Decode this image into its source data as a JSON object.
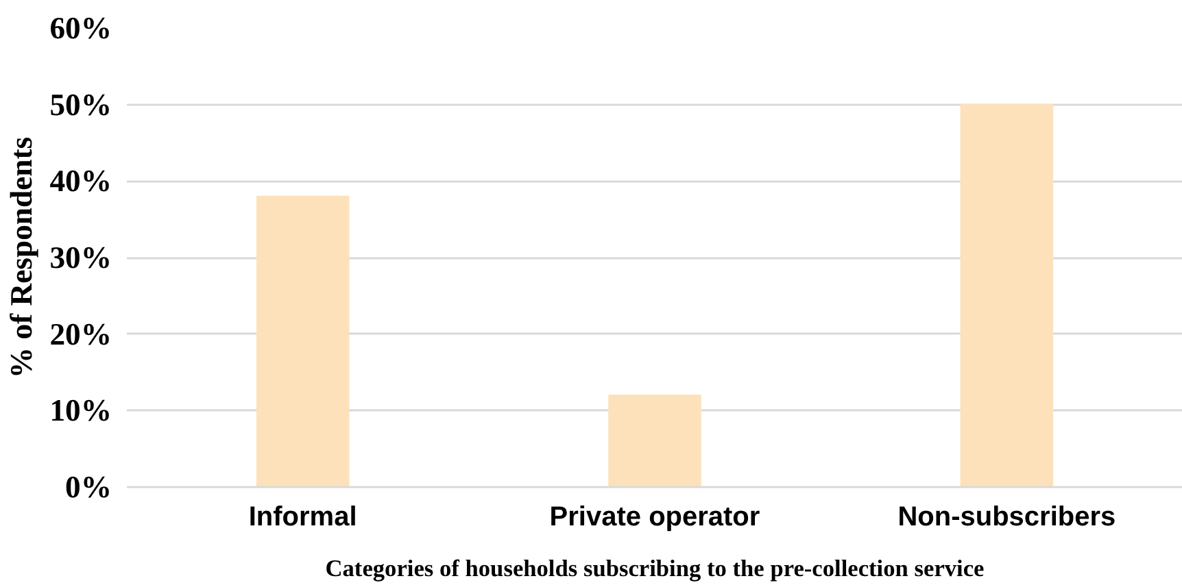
{
  "chart_data": {
    "type": "bar",
    "xlabel": "Categories of households subscribing to the pre-collection service",
    "ylabel": "% of Respondents",
    "categories": [
      "Informal",
      "Private operator",
      "Non-subscribers"
    ],
    "values": [
      38,
      12,
      50
    ],
    "color": "#fde1bb",
    "ylim": [
      0,
      60
    ],
    "yticks": [
      {
        "value": 0,
        "label": "0%"
      },
      {
        "value": 10,
        "label": "10%"
      },
      {
        "value": 20,
        "label": "20%"
      },
      {
        "value": 30,
        "label": "30%"
      },
      {
        "value": 40,
        "label": "40%"
      },
      {
        "value": 50,
        "label": "50%"
      },
      {
        "value": 60,
        "label": "60%"
      }
    ],
    "grid": "y"
  }
}
